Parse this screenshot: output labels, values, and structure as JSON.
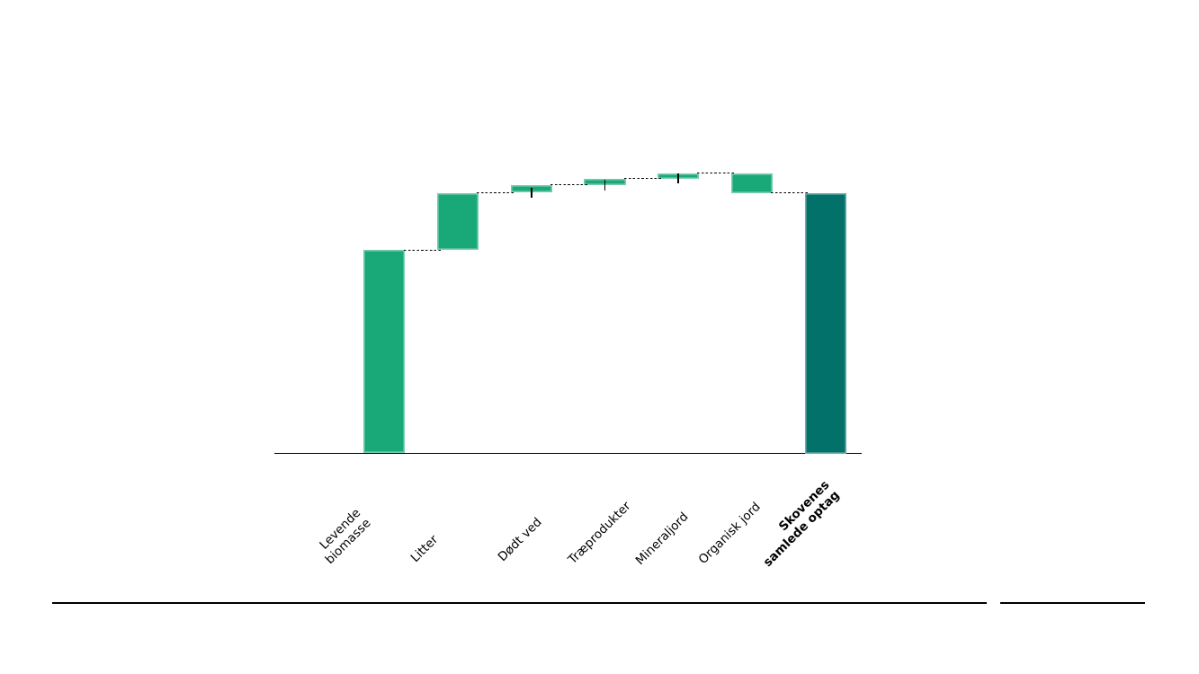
{
  "chart_data": {
    "type": "bar",
    "subtype": "waterfall",
    "title": "",
    "xlabel": "",
    "ylabel": "",
    "y_axis_shown": false,
    "gridlines": false,
    "legend": "none",
    "note": "No numeric y-axis is shown in the figure; values are estimated from bar heights as percent of the total bar (total = 100).",
    "colors": {
      "increment_green": "#19A878",
      "total_teal": "#02716A",
      "connector_black": "#000000",
      "axis_black": "#000000"
    },
    "bars": [
      {
        "label": "Levende\nbiomasse",
        "value": 78,
        "cumulative_after": 78,
        "is_total": false,
        "error_bar": false,
        "bold": false,
        "color": "#19A878"
      },
      {
        "label": "Litter",
        "value": 22,
        "cumulative_after": 100,
        "is_total": false,
        "error_bar": false,
        "bold": false,
        "color": "#19A878"
      },
      {
        "label": "Dødt ved",
        "value": 3,
        "cumulative_after": 103,
        "is_total": false,
        "error_bar": true,
        "bold": false,
        "color": "#19A878"
      },
      {
        "label": "Træprodukter",
        "value": 2.5,
        "cumulative_after": 105.5,
        "is_total": false,
        "error_bar": true,
        "bold": false,
        "color": "#19A878"
      },
      {
        "label": "Mineraljord",
        "value": 2,
        "cumulative_after": 107.5,
        "is_total": false,
        "error_bar": true,
        "bold": false,
        "color": "#19A878"
      },
      {
        "label": "Organisk jord",
        "value": -7.5,
        "cumulative_after": 100,
        "is_total": false,
        "error_bar": false,
        "bold": false,
        "color": "#19A878"
      },
      {
        "label": "Skovenes\nsamlede optag",
        "value": 100,
        "cumulative_after": 100,
        "is_total": true,
        "error_bar": false,
        "bold": true,
        "color": "#02716A"
      }
    ],
    "connector_style": "dashed",
    "categories": [
      "Levende biomasse",
      "Litter",
      "Dødt ved",
      "Træprodukter",
      "Mineraljord",
      "Organisk jord",
      "Skovenes samlede optag"
    ],
    "values": [
      78,
      22,
      3,
      2.5,
      2,
      -7.5,
      100
    ]
  },
  "footer": {
    "rule_left": "divider",
    "rule_right": "divider"
  }
}
